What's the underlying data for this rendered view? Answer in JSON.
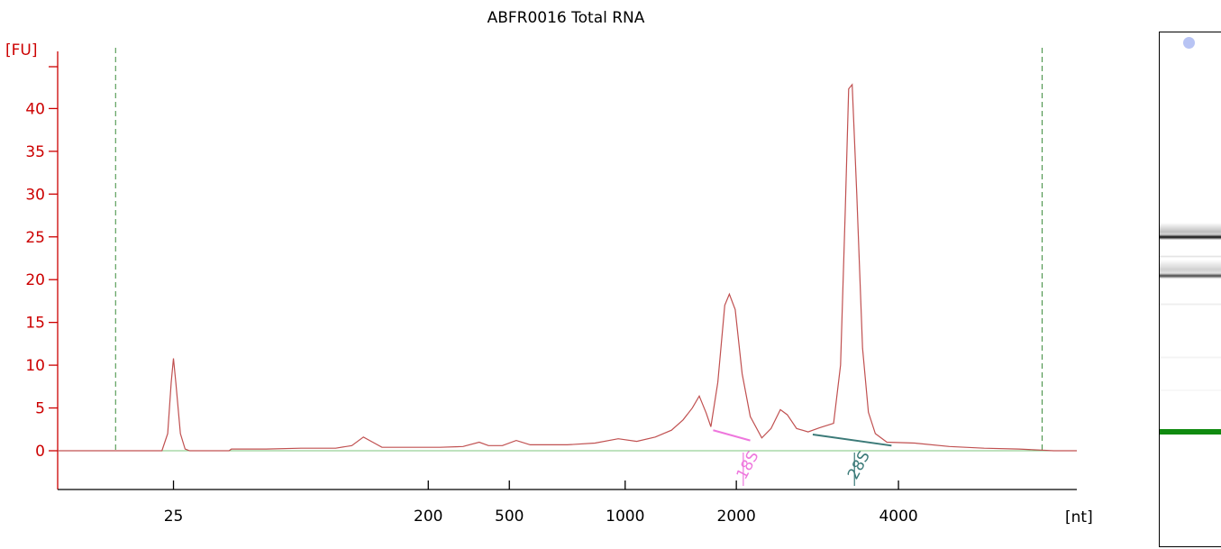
{
  "chart_data": {
    "type": "line",
    "title": "ABFR0016 Total RNA",
    "ylabel": "[FU]",
    "xlabel": "[nt]",
    "ylim": [
      -4.5,
      47
    ],
    "y_ticks": [
      0,
      5,
      10,
      15,
      20,
      25,
      30,
      35,
      40
    ],
    "x_ticks": [
      {
        "label": "25",
        "t": 25.0
      },
      {
        "label": "200",
        "t": 36.0
      },
      {
        "label": "500",
        "t": 39.5
      },
      {
        "label": "1000",
        "t": 44.5
      },
      {
        "label": "2000",
        "t": 49.3
      },
      {
        "label": "4000",
        "t": 56.3
      }
    ],
    "xlim": [
      20.0,
      64.0
    ],
    "grid": false,
    "colors": {
      "axis": "#cc0000",
      "trace": "#c05050",
      "baseline": "#7cc47c",
      "marker_line": "#3c8c3c",
      "peak_18s": "#ee77dd",
      "peak_28s": "#3b7a78",
      "gel_marker": "#0f8a0f"
    },
    "series": [
      {
        "values": [
          [
            20.0,
            0.0
          ],
          [
            24.5,
            0.0
          ],
          [
            24.75,
            2.0
          ],
          [
            24.9,
            8.0
          ],
          [
            25.0,
            10.8
          ],
          [
            25.1,
            8.0
          ],
          [
            25.3,
            2.0
          ],
          [
            25.5,
            0.2
          ],
          [
            25.7,
            0.0
          ],
          [
            27.4,
            0.0
          ],
          [
            27.5,
            0.2
          ],
          [
            29.0,
            0.2
          ],
          [
            30.5,
            0.3
          ],
          [
            32.0,
            0.3
          ],
          [
            32.7,
            0.6
          ],
          [
            33.2,
            1.6
          ],
          [
            33.6,
            1.0
          ],
          [
            34.0,
            0.4
          ],
          [
            36.5,
            0.4
          ],
          [
            37.5,
            0.5
          ],
          [
            38.2,
            1.0
          ],
          [
            38.6,
            0.6
          ],
          [
            39.2,
            0.6
          ],
          [
            39.8,
            1.2
          ],
          [
            40.4,
            0.7
          ],
          [
            42.0,
            0.7
          ],
          [
            43.2,
            0.9
          ],
          [
            44.2,
            1.4
          ],
          [
            45.0,
            1.1
          ],
          [
            45.8,
            1.6
          ],
          [
            46.5,
            2.4
          ],
          [
            47.0,
            3.6
          ],
          [
            47.4,
            5.0
          ],
          [
            47.7,
            6.4
          ],
          [
            48.0,
            4.4
          ],
          [
            48.2,
            2.8
          ],
          [
            48.5,
            8.0
          ],
          [
            48.8,
            17.0
          ],
          [
            49.0,
            18.3
          ],
          [
            49.25,
            16.5
          ],
          [
            49.55,
            9.0
          ],
          [
            49.9,
            4.0
          ],
          [
            50.4,
            1.5
          ],
          [
            50.8,
            2.6
          ],
          [
            51.2,
            4.8
          ],
          [
            51.5,
            4.2
          ],
          [
            51.9,
            2.6
          ],
          [
            52.4,
            2.2
          ],
          [
            52.9,
            2.7
          ],
          [
            53.5,
            3.2
          ],
          [
            53.8,
            10.0
          ],
          [
            54.0,
            28.0
          ],
          [
            54.15,
            42.3
          ],
          [
            54.3,
            42.8
          ],
          [
            54.5,
            30.0
          ],
          [
            54.75,
            12.0
          ],
          [
            55.0,
            4.5
          ],
          [
            55.3,
            2.0
          ],
          [
            55.8,
            1.0
          ],
          [
            57.0,
            0.9
          ],
          [
            58.5,
            0.5
          ],
          [
            60.0,
            0.3
          ],
          [
            61.5,
            0.2
          ],
          [
            63.0,
            0.0
          ],
          [
            64.0,
            0.0
          ]
        ]
      }
    ],
    "peaks": [
      {
        "label": "18S",
        "x1": 48.3,
        "y1": 2.4,
        "x2": 49.9,
        "y2": 1.2,
        "label_t": 49.6
      },
      {
        "label": "28S",
        "x1": 52.6,
        "y1": 1.9,
        "x2": 56.0,
        "y2": 0.6,
        "label_t": 54.4
      }
    ],
    "markers": [
      22.5,
      62.5
    ],
    "gel": {
      "bands": [
        {
          "y": 262,
          "h": 6,
          "dark": 0.95
        },
        {
          "y": 256,
          "h": 20,
          "dark": 0.25
        },
        {
          "y": 305,
          "h": 6,
          "dark": 0.7
        },
        {
          "y": 298,
          "h": 22,
          "dark": 0.18
        },
        {
          "y": 283,
          "h": 3,
          "dark": 0.12
        },
        {
          "y": 336,
          "h": 3,
          "dark": 0.08
        },
        {
          "y": 395,
          "h": 3,
          "dark": 0.06
        },
        {
          "y": 432,
          "h": 2,
          "dark": 0.06
        }
      ],
      "marker_y": 478
    }
  }
}
